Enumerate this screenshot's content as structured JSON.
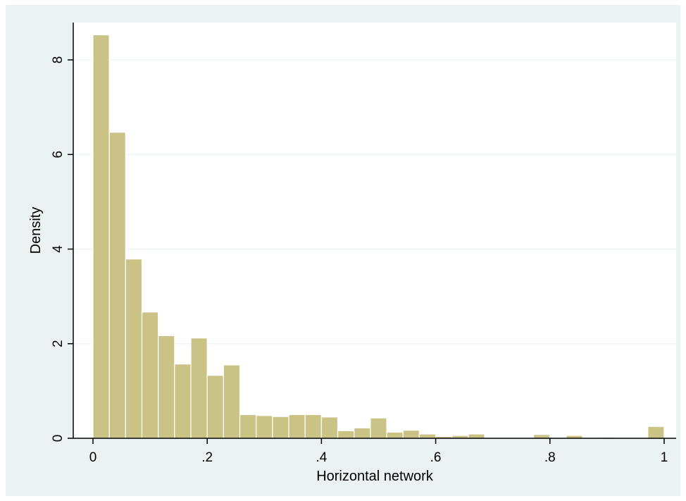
{
  "chart_data": {
    "type": "bar",
    "subtype": "histogram",
    "xlabel": "Horizontal network",
    "ylabel": "Density",
    "xlim": [
      0,
      1
    ],
    "ylim": [
      0,
      8.53
    ],
    "x_ticks": [
      0,
      0.2,
      0.4,
      0.6,
      0.8,
      1
    ],
    "x_tick_labels": [
      "0",
      ".2",
      ".4",
      ".6",
      ".8",
      "1"
    ],
    "y_ticks": [
      0,
      2,
      4,
      6,
      8
    ],
    "y_tick_labels": [
      "0",
      "2",
      "4",
      "6",
      "8"
    ],
    "grid": true,
    "legend": "none",
    "bin_width": 0.02857,
    "bins_start": 0,
    "values": [
      8.53,
      6.47,
      3.79,
      2.67,
      2.17,
      1.57,
      2.12,
      1.33,
      1.55,
      0.5,
      0.48,
      0.46,
      0.5,
      0.5,
      0.45,
      0.16,
      0.22,
      0.43,
      0.13,
      0.17,
      0.09,
      0.04,
      0.06,
      0.09,
      0.0,
      0.01,
      0.01,
      0.08,
      0.0,
      0.06,
      0.0,
      0.02,
      0.01,
      0.0,
      0.25
    ],
    "colors": {
      "bar_fill": "#cbc385",
      "bar_stroke": "#ffffff",
      "plot_background": "#ffffff",
      "outer_background": "#eaf2f3",
      "grid": "#eaf2f3"
    }
  }
}
